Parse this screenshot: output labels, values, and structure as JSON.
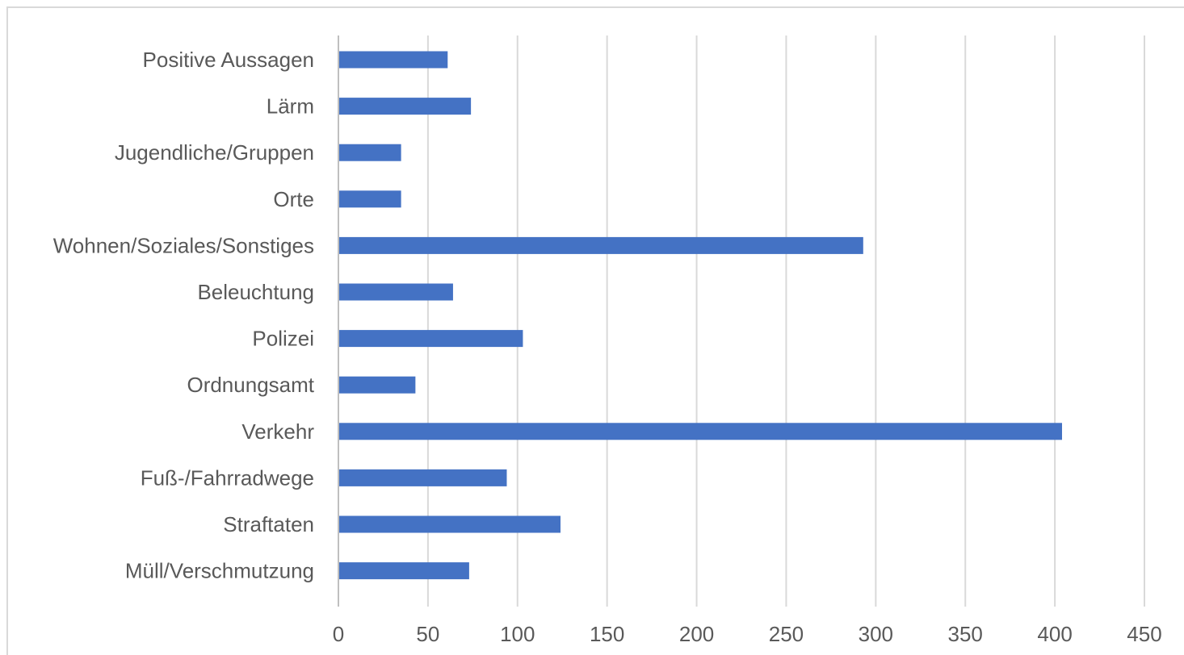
{
  "chart_data": {
    "type": "bar",
    "orientation": "horizontal",
    "categories": [
      "Positive Aussagen",
      "Lärm",
      "Jugendliche/Gruppen",
      "Orte",
      "Wohnen/Soziales/Sonstiges",
      "Beleuchtung",
      "Polizei",
      "Ordnungsamt",
      "Verkehr",
      "Fuß-/Fahrradwege",
      "Straftaten",
      "Müll/Verschmutzung"
    ],
    "values": [
      61,
      74,
      35,
      35,
      293,
      64,
      103,
      43,
      404,
      94,
      124,
      73
    ],
    "title": "",
    "xlabel": "",
    "ylabel": "",
    "xlim": [
      0,
      450
    ],
    "xticks": [
      0,
      50,
      100,
      150,
      200,
      250,
      300,
      350,
      400,
      450
    ],
    "grid": true,
    "legend": "none",
    "colors": {
      "bar": "#4472c4",
      "grid": "#d9d9d9",
      "text": "#595959",
      "frame": "#d9d9d9"
    }
  }
}
